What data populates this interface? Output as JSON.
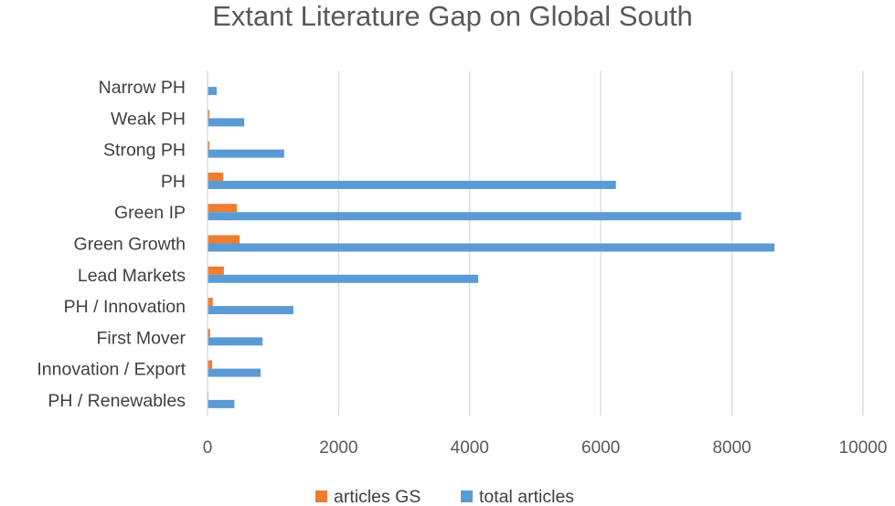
{
  "chart_data": {
    "type": "bar",
    "orientation": "horizontal",
    "title": "Extant Literature Gap on Global South",
    "xlabel": "",
    "ylabel": "",
    "xlim": [
      0,
      10000
    ],
    "xticks": [
      "0",
      "2000",
      "4000",
      "6000",
      "8000",
      "10000"
    ],
    "grid": true,
    "legend": "bottom",
    "categories": [
      "Narrow PH",
      "Weak PH",
      "Strong PH",
      "PH",
      "Green IP",
      "Green Growth",
      "Lead Markets",
      "PH / Innovation",
      "First Mover",
      "Innovation / Export",
      "PH / Renewables"
    ],
    "series": [
      {
        "name": "articles GS",
        "color": "#ed7d31",
        "values": [
          10,
          30,
          30,
          240,
          450,
          490,
          250,
          80,
          40,
          70,
          15
        ]
      },
      {
        "name": "total articles",
        "color": "#5b9bd5",
        "values": [
          140,
          560,
          1170,
          6230,
          8140,
          8650,
          4130,
          1310,
          840,
          810,
          410
        ]
      }
    ]
  }
}
